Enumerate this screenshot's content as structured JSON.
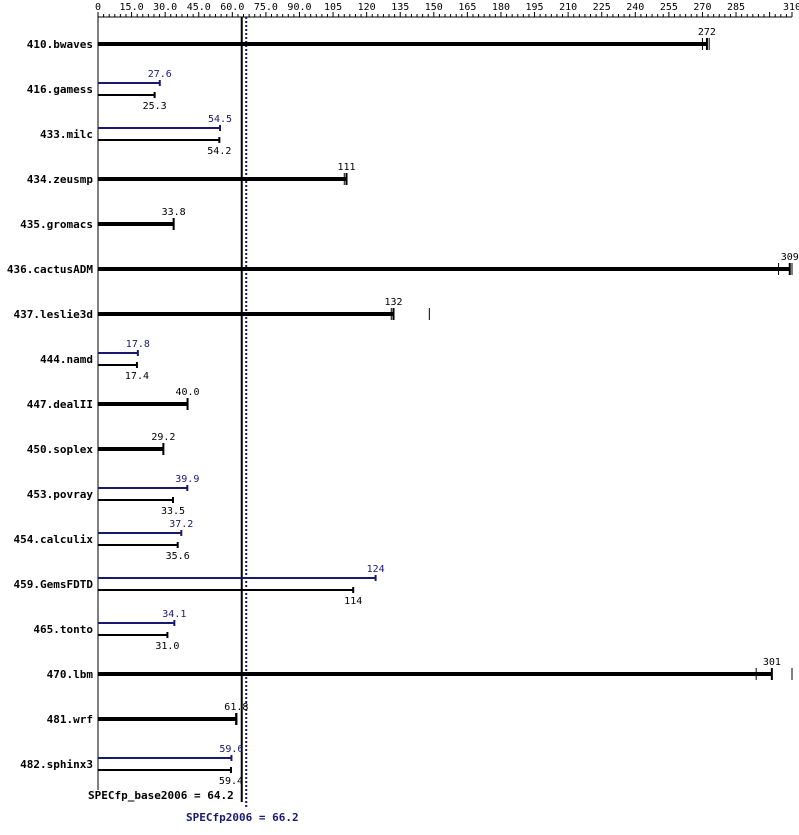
{
  "chart_data": {
    "type": "bar",
    "orientation": "horizontal",
    "xlim": [
      0,
      310
    ],
    "ticks": [
      "0",
      "15.0",
      "30.0",
      "45.0",
      "60.0",
      "75.0",
      "90.0",
      "105",
      "120",
      "135",
      "150",
      "165",
      "180",
      "195",
      "210",
      "225",
      "240",
      "255",
      "270",
      "285",
      "310"
    ],
    "tick_values": [
      0,
      15,
      30,
      45,
      60,
      75,
      90,
      105,
      120,
      135,
      150,
      165,
      180,
      195,
      210,
      225,
      240,
      255,
      270,
      285,
      310
    ],
    "colors": {
      "base": "#000000",
      "peak": "#191970"
    },
    "categories": [
      "410.bwaves",
      "416.gamess",
      "433.milc",
      "434.zeusmp",
      "435.gromacs",
      "436.cactusADM",
      "437.leslie3d",
      "444.namd",
      "447.dealII",
      "450.soplex",
      "453.povray",
      "454.calculix",
      "459.GemsFDTD",
      "465.tonto",
      "470.lbm",
      "481.wrf",
      "482.sphinx3"
    ],
    "benchmarks": [
      {
        "name": "410.bwaves",
        "base": 272,
        "base_label": "272",
        "peak": null,
        "peak_label": "",
        "runs": [
          270,
          272,
          273
        ]
      },
      {
        "name": "416.gamess",
        "base": 25.3,
        "base_label": "25.3",
        "peak": 27.6,
        "peak_label": "27.6",
        "runs": []
      },
      {
        "name": "433.milc",
        "base": 54.2,
        "base_label": "54.2",
        "peak": 54.5,
        "peak_label": "54.5",
        "runs": []
      },
      {
        "name": "434.zeusmp",
        "base": 111,
        "base_label": "111",
        "peak": null,
        "peak_label": "",
        "runs": [
          110,
          111
        ]
      },
      {
        "name": "435.gromacs",
        "base": 33.8,
        "base_label": "33.8",
        "peak": null,
        "peak_label": "",
        "runs": []
      },
      {
        "name": "436.cactusADM",
        "base": 309,
        "base_label": "309",
        "peak": null,
        "peak_label": "",
        "runs": [
          304,
          309,
          310
        ]
      },
      {
        "name": "437.leslie3d",
        "base": 132,
        "base_label": "132",
        "peak": null,
        "peak_label": "",
        "runs": [
          131,
          132,
          148
        ]
      },
      {
        "name": "444.namd",
        "base": 17.4,
        "base_label": "17.4",
        "peak": 17.8,
        "peak_label": "17.8",
        "runs": []
      },
      {
        "name": "447.dealII",
        "base": 40.0,
        "base_label": "40.0",
        "peak": null,
        "peak_label": "",
        "runs": []
      },
      {
        "name": "450.soplex",
        "base": 29.2,
        "base_label": "29.2",
        "peak": null,
        "peak_label": "",
        "runs": []
      },
      {
        "name": "453.povray",
        "base": 33.5,
        "base_label": "33.5",
        "peak": 39.9,
        "peak_label": "39.9",
        "runs": []
      },
      {
        "name": "454.calculix",
        "base": 35.6,
        "base_label": "35.6",
        "peak": 37.2,
        "peak_label": "37.2",
        "runs": []
      },
      {
        "name": "459.GemsFDTD",
        "base": 114,
        "base_label": "114",
        "peak": 124,
        "peak_label": "124",
        "runs": []
      },
      {
        "name": "465.tonto",
        "base": 31.0,
        "base_label": "31.0",
        "peak": 34.1,
        "peak_label": "34.1",
        "runs": []
      },
      {
        "name": "470.lbm",
        "base": 301,
        "base_label": "301",
        "peak": null,
        "peak_label": "",
        "runs": [
          294,
          301,
          310
        ]
      },
      {
        "name": "481.wrf",
        "base": 61.8,
        "base_label": "61.8",
        "peak": null,
        "peak_label": "",
        "runs": [
          61.5,
          62
        ]
      },
      {
        "name": "482.sphinx3",
        "base": 59.4,
        "base_label": "59.4",
        "peak": 59.6,
        "peak_label": "59.6",
        "runs": []
      }
    ],
    "base_summary": {
      "label": "SPECfp_base2006 = 64.2",
      "value": 64.2
    },
    "peak_summary": {
      "label": "SPECfp2006 = 66.2",
      "value": 66.2
    }
  }
}
